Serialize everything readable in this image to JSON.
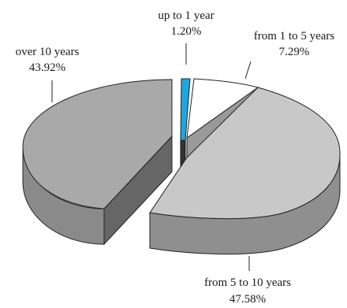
{
  "chart_data": {
    "type": "pie",
    "style": "3d-exploded",
    "title": "",
    "slices": [
      {
        "label": "up to 1 year",
        "value_label": "1.20%",
        "value": 1.2,
        "color": "#1ea6e0"
      },
      {
        "label": "from 1 to 5 years",
        "value_label": "7.29%",
        "value": 7.29,
        "color": "#ffffff"
      },
      {
        "label": "from 5 to 10 years",
        "value_label": "47.58%",
        "value": 47.58,
        "color": "#c8c8c8"
      },
      {
        "label": "over 10 years",
        "value_label": "43.92%",
        "value": 43.92,
        "color": "#a9a9a9"
      }
    ]
  }
}
